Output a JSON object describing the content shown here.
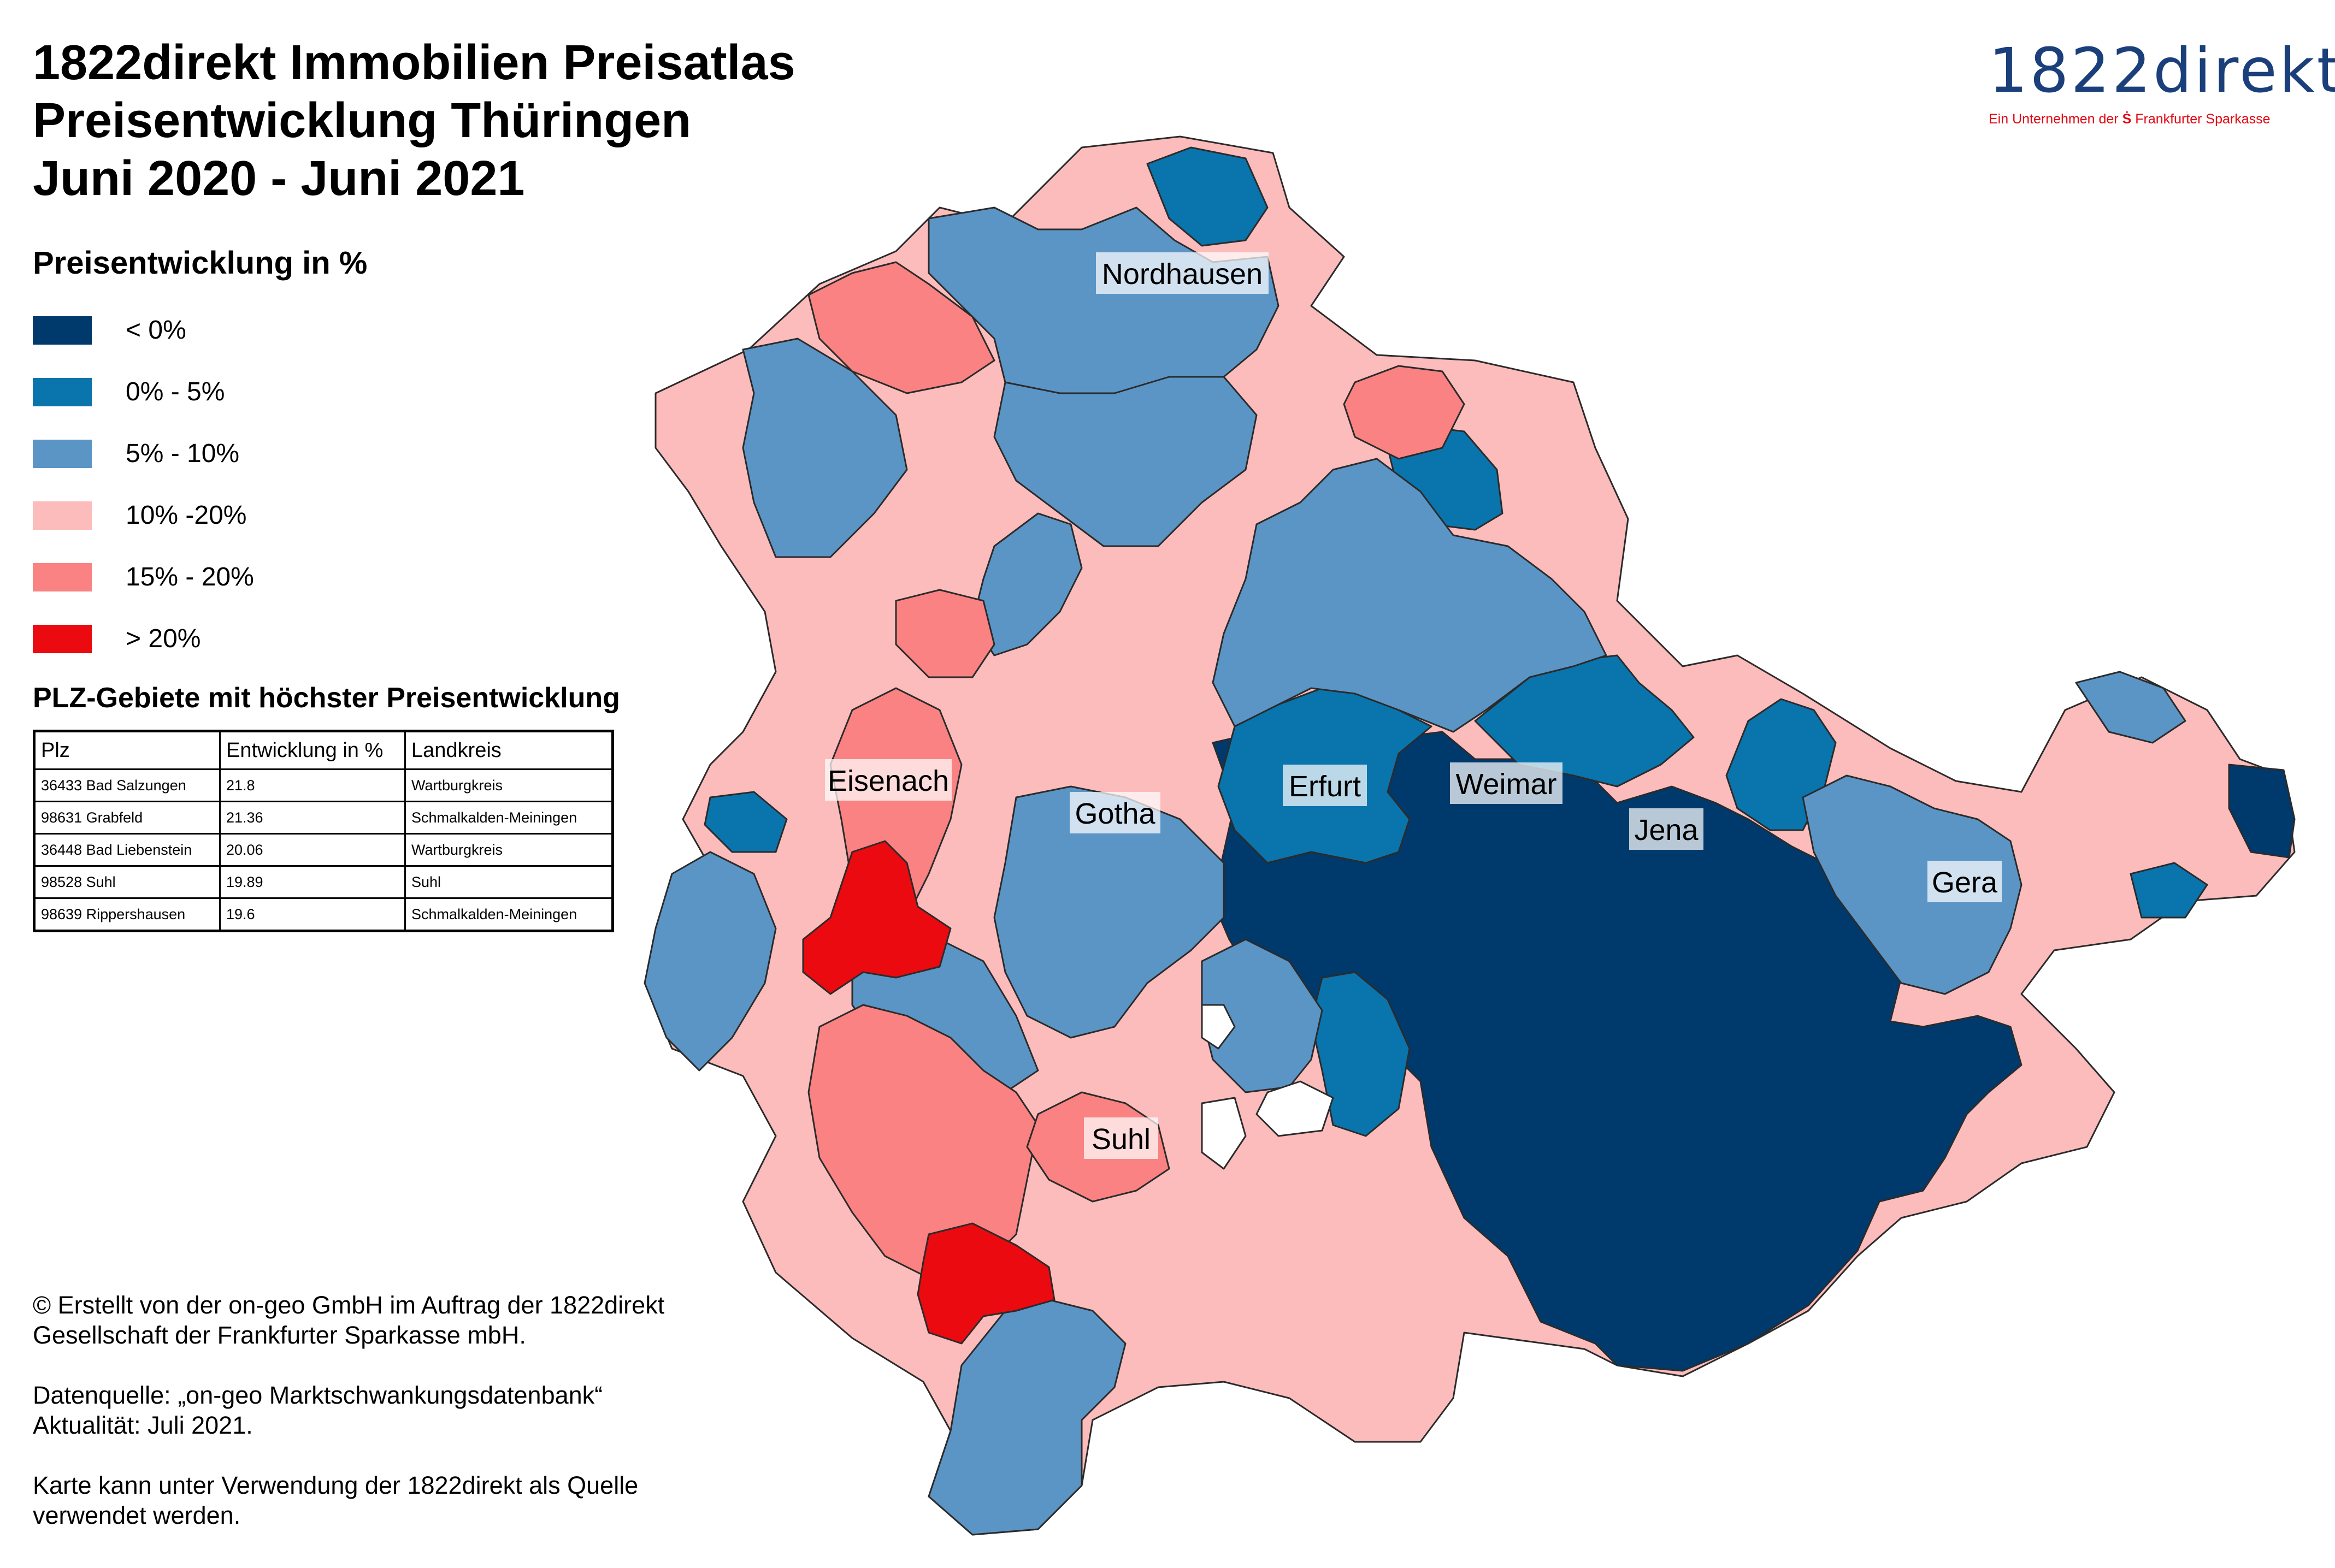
{
  "title": {
    "line1": "1822direkt Immobilien Preisatlas",
    "line2": "Preisentwicklung Thüringen",
    "line3": "Juni 2020 - Juni 2021"
  },
  "logo": {
    "name": "1822direkt",
    "tagline": "Ein Unternehmen der",
    "s_symbol": "Ṡ",
    "parent": "Frankfurter Sparkasse"
  },
  "legend": {
    "title": "Preisentwicklung in %",
    "items": [
      {
        "label": "< 0%",
        "color": "#00396b"
      },
      {
        "label": "0% - 5%",
        "color": "#0a74ad"
      },
      {
        "label": "5% - 10%",
        "color": "#5b95c6"
      },
      {
        "label": "10% -20%",
        "color": "#fcbcbc"
      },
      {
        "label": "15% - 20%",
        "color": "#fa8282"
      },
      {
        "label": "> 20%",
        "color": "#ea0a0f"
      }
    ]
  },
  "plz_table": {
    "title": "PLZ-Gebiete mit höchster Preisentwicklung",
    "headers": [
      "Plz",
      "Entwicklung in %",
      "Landkreis"
    ],
    "rows": [
      [
        "36433 Bad Salzungen",
        "21.8",
        "Wartburgkreis"
      ],
      [
        "98631 Grabfeld",
        "21.36",
        "Schmalkalden-Meiningen"
      ],
      [
        "36448 Bad Liebenstein",
        "20.06",
        "Wartburgkreis"
      ],
      [
        "98528 Suhl",
        "19.89",
        "Suhl"
      ],
      [
        "98639 Rippershausen",
        "19.6",
        "Schmalkalden-Meiningen"
      ]
    ]
  },
  "credits": {
    "line1": "© Erstellt von der on-geo GmbH im Auftrag der 1822direkt Gesellschaft der Frankfurter Sparkasse mbH.",
    "line2a": "Datenquelle: „on-geo Marktschwankungsdatenbank“",
    "line2b": "Aktualität: Juli 2021.",
    "line3": "Karte kann unter Verwendung der 1822direkt als Quelle verwendet werden."
  },
  "map": {
    "cities": [
      "Nordhausen",
      "Eisenach",
      "Gotha",
      "Erfurt",
      "Weimar",
      "Jena",
      "Gera",
      "Suhl"
    ]
  }
}
